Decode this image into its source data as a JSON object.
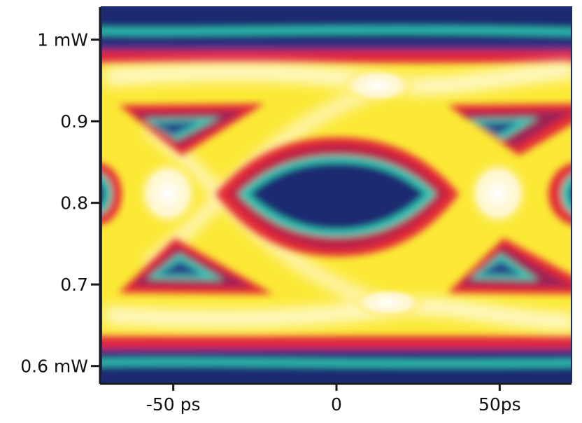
{
  "chart_data": {
    "type": "heatmap",
    "title": "",
    "xlabel": "",
    "ylabel": "",
    "x_range_ps": [
      -72,
      72
    ],
    "y_range_mW": [
      0.58,
      1.04
    ],
    "x_ticks": [
      {
        "value": -50,
        "label": "-50 ps"
      },
      {
        "value": 0,
        "label": "0"
      },
      {
        "value": 50,
        "label": "50ps"
      }
    ],
    "y_ticks": [
      {
        "value": 1.0,
        "label": "1 mW"
      },
      {
        "value": 0.9,
        "label": "0.9"
      },
      {
        "value": 0.8,
        "label": "0.8"
      },
      {
        "value": 0.7,
        "label": "0.7"
      },
      {
        "value": 0.6,
        "label": "0.6 mW"
      }
    ],
    "colormap": [
      "#1b2a72",
      "#2ec9b5",
      "#c9284a",
      "#f4202a",
      "#fbe936",
      "#fff8c0",
      "#ffffff"
    ],
    "grid": false,
    "legend": "none"
  }
}
